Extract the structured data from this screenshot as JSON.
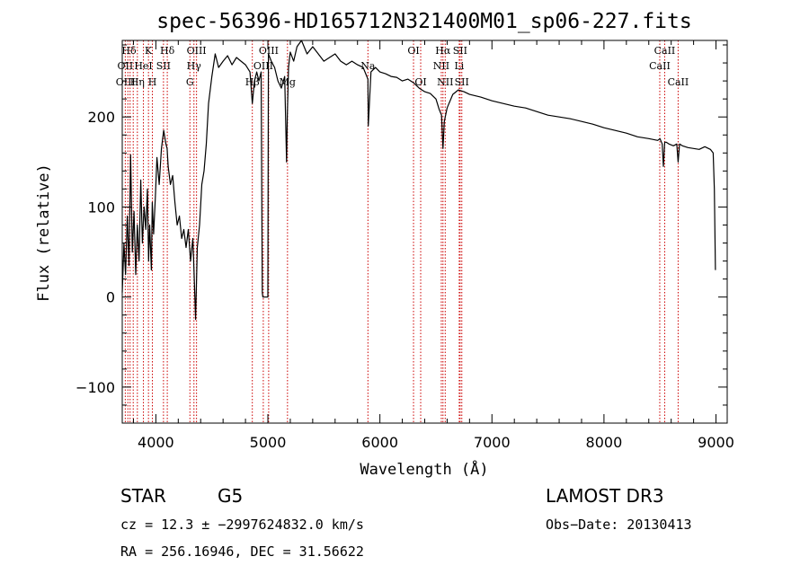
{
  "chart_data": {
    "type": "line",
    "title": "spec-56396-HD165712N321400M01_sp06-227.fits",
    "xlabel": "Wavelength (Å)",
    "ylabel": "Flux (relative)",
    "xlim": [
      3700,
      9100
    ],
    "ylim": [
      -140,
      285
    ],
    "x_ticks": [
      4000,
      5000,
      6000,
      7000,
      8000,
      9000
    ],
    "y_ticks": [
      -100,
      0,
      100,
      200
    ],
    "grid": false,
    "line_color": "#000000",
    "marker_line_color": "#cc0000",
    "series": [
      {
        "x": [
          3700,
          3715,
          3730,
          3745,
          3760,
          3775,
          3790,
          3805,
          3820,
          3835,
          3850,
          3865,
          3880,
          3895,
          3910,
          3925,
          3935,
          3945,
          3960,
          3968,
          3980,
          3995,
          4010,
          4030,
          4050,
          4070,
          4090,
          4100,
          4110,
          4130,
          4150,
          4170,
          4190,
          4210,
          4230,
          4250,
          4270,
          4290,
          4310,
          4330,
          4340,
          4355,
          4370,
          4390,
          4410,
          4430,
          4450,
          4470,
          4500,
          4530,
          4560,
          4600,
          4640,
          4680,
          4720,
          4760,
          4800,
          4840,
          4861,
          4880,
          4900,
          4920,
          4940,
          4950,
          4955,
          5000,
          5005,
          5030,
          5060,
          5090,
          5120,
          5150,
          5167,
          5173,
          5184,
          5200,
          5230,
          5260,
          5300,
          5350,
          5400,
          5450,
          5500,
          5550,
          5600,
          5650,
          5700,
          5750,
          5800,
          5850,
          5893,
          5896,
          5920,
          5960,
          6000,
          6050,
          6100,
          6150,
          6200,
          6250,
          6300,
          6350,
          6400,
          6450,
          6500,
          6530,
          6550,
          6563,
          6575,
          6600,
          6650,
          6700,
          6750,
          6800,
          6900,
          7000,
          7100,
          7200,
          7300,
          7400,
          7500,
          7600,
          7700,
          7800,
          7900,
          8000,
          8100,
          8200,
          8300,
          8400,
          8480,
          8500,
          8520,
          8530,
          8542,
          8555,
          8580,
          8620,
          8650,
          8662,
          8675,
          8700,
          8750,
          8800,
          8850,
          8900,
          8950,
          8975,
          8985,
          8995
        ],
        "y": [
          5,
          60,
          25,
          90,
          35,
          158,
          50,
          95,
          25,
          80,
          40,
          130,
          60,
          100,
          75,
          120,
          40,
          80,
          30,
          105,
          70,
          110,
          155,
          125,
          165,
          185,
          170,
          165,
          145,
          125,
          135,
          105,
          80,
          90,
          65,
          75,
          55,
          75,
          40,
          65,
          30,
          -25,
          55,
          80,
          125,
          140,
          170,
          215,
          245,
          270,
          255,
          262,
          268,
          258,
          266,
          262,
          258,
          250,
          215,
          240,
          250,
          240,
          250,
          5,
          0,
          0,
          270,
          262,
          255,
          240,
          232,
          245,
          150,
          200,
          255,
          272,
          262,
          278,
          290,
          270,
          278,
          270,
          262,
          266,
          270,
          262,
          258,
          262,
          258,
          255,
          242,
          190,
          250,
          255,
          250,
          248,
          245,
          244,
          240,
          242,
          238,
          232,
          228,
          226,
          220,
          208,
          202,
          165,
          195,
          210,
          225,
          230,
          228,
          225,
          222,
          218,
          215,
          212,
          210,
          206,
          202,
          200,
          198,
          195,
          192,
          188,
          185,
          182,
          178,
          176,
          174,
          176,
          170,
          145,
          172,
          172,
          170,
          168,
          170,
          150,
          170,
          168,
          166,
          165,
          164,
          167,
          164,
          160,
          120,
          30
        ]
      }
    ],
    "spectral_lines": [
      {
        "label": "Hδ",
        "x": 3760,
        "row": 1
      },
      {
        "label": "OII",
        "x": 3727,
        "row": 2
      },
      {
        "label": "OIII",
        "x": 3730,
        "row": 3
      },
      {
        "label": "K",
        "x": 3934,
        "row": 1
      },
      {
        "label": "HeI",
        "x": 3889,
        "row": 2
      },
      {
        "label": "Hη",
        "x": 3835,
        "row": 3
      },
      {
        "label": "H",
        "x": 3969,
        "row": 3
      },
      {
        "label": "Hδ",
        "x": 4102,
        "row": 1
      },
      {
        "label": "SII",
        "x": 4068,
        "row": 2
      },
      {
        "label": "OIII",
        "x": 4363,
        "row": 1
      },
      {
        "label": "Hγ",
        "x": 4340,
        "row": 2
      },
      {
        "label": "G",
        "x": 4304,
        "row": 3
      },
      {
        "label": "OIII",
        "x": 5007,
        "row": 1
      },
      {
        "label": "OIII",
        "x": 4959,
        "row": 2
      },
      {
        "label": "Hβ",
        "x": 4861,
        "row": 3
      },
      {
        "label": "Mg",
        "x": 5175,
        "row": 3
      },
      {
        "label": "Na",
        "x": 5893,
        "row": 2
      },
      {
        "label": "OI",
        "x": 6300,
        "row": 1
      },
      {
        "label": "OI",
        "x": 6364,
        "row": 3
      },
      {
        "label": "Hα",
        "x": 6563,
        "row": 1
      },
      {
        "label": "SII",
        "x": 6716,
        "row": 1
      },
      {
        "label": "NII",
        "x": 6548,
        "row": 2
      },
      {
        "label": "Li",
        "x": 6708,
        "row": 2
      },
      {
        "label": "NII",
        "x": 6583,
        "row": 3
      },
      {
        "label": "SII",
        "x": 6731,
        "row": 3
      },
      {
        "label": "CaII",
        "x": 8542,
        "row": 1
      },
      {
        "label": "CaII",
        "x": 8498,
        "row": 2
      },
      {
        "label": "CaII",
        "x": 8662,
        "row": 3
      }
    ],
    "marker_x": [
      3727,
      3750,
      3770,
      3798,
      3835,
      3889,
      3934,
      3969,
      4068,
      4102,
      4304,
      4340,
      4363,
      4861,
      4959,
      5007,
      5175,
      5893,
      6300,
      6364,
      6548,
      6563,
      6583,
      6708,
      6716,
      6731,
      8498,
      8542,
      8662
    ]
  },
  "footer": {
    "object_type": "STAR",
    "subclass": "G5",
    "survey": "LAMOST DR3",
    "cz_line": "cz = 12.3 ± −2997624832.0 km/s",
    "obs_date": "Obs−Date: 20130413",
    "radec_line": "RA = 256.16946, DEC =  31.56622"
  }
}
